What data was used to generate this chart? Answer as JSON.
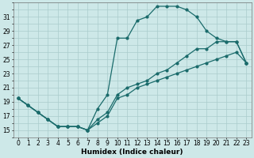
{
  "xlabel": "Humidex (Indice chaleur)",
  "bg_color": "#cde8e8",
  "grid_color": "#aacccc",
  "line_color": "#1a6b6b",
  "xlim": [
    -0.5,
    23.5
  ],
  "ylim": [
    14.0,
    33.0
  ],
  "yticks": [
    15,
    17,
    19,
    21,
    23,
    25,
    27,
    29,
    31
  ],
  "xtick_labels": [
    "0",
    "1",
    "2",
    "3",
    "4",
    "5",
    "6",
    "7",
    "8",
    "9",
    "10",
    "11",
    "12",
    "13",
    "14",
    "15",
    "16",
    "17",
    "18",
    "19",
    "20",
    "21",
    "22",
    "23"
  ],
  "line1_x": [
    0,
    1,
    2,
    3,
    4,
    5,
    6,
    7,
    8,
    9,
    10,
    11,
    12,
    13,
    14,
    15,
    16,
    17,
    18,
    19,
    20,
    21,
    22,
    23
  ],
  "line1_y": [
    19.5,
    18.5,
    17.5,
    16.5,
    15.5,
    15.5,
    15.5,
    15.0,
    18.0,
    20.0,
    28.0,
    28.0,
    30.5,
    31.0,
    32.5,
    32.5,
    32.5,
    32.0,
    31.0,
    29.0,
    28.0,
    27.5,
    27.5,
    24.5
  ],
  "line2_x": [
    0,
    1,
    2,
    3,
    4,
    5,
    6,
    7,
    8,
    9,
    10,
    11,
    12,
    13,
    14,
    15,
    16,
    17,
    18,
    19,
    20,
    21,
    22,
    23
  ],
  "line2_y": [
    19.5,
    18.5,
    17.5,
    16.5,
    15.5,
    15.5,
    15.5,
    15.0,
    16.5,
    17.5,
    20.0,
    21.0,
    21.5,
    22.0,
    23.0,
    23.5,
    24.5,
    25.5,
    26.5,
    26.5,
    27.5,
    27.5,
    27.5,
    24.5
  ],
  "line3_x": [
    0,
    1,
    2,
    3,
    4,
    5,
    6,
    7,
    8,
    9,
    10,
    11,
    12,
    13,
    14,
    15,
    16,
    17,
    18,
    19,
    20,
    21,
    22,
    23
  ],
  "line3_y": [
    19.5,
    18.5,
    17.5,
    16.5,
    15.5,
    15.5,
    15.5,
    15.0,
    16.0,
    17.0,
    19.5,
    20.0,
    21.0,
    21.5,
    22.0,
    22.5,
    23.0,
    23.5,
    24.0,
    24.5,
    25.0,
    25.5,
    26.0,
    24.5
  ]
}
